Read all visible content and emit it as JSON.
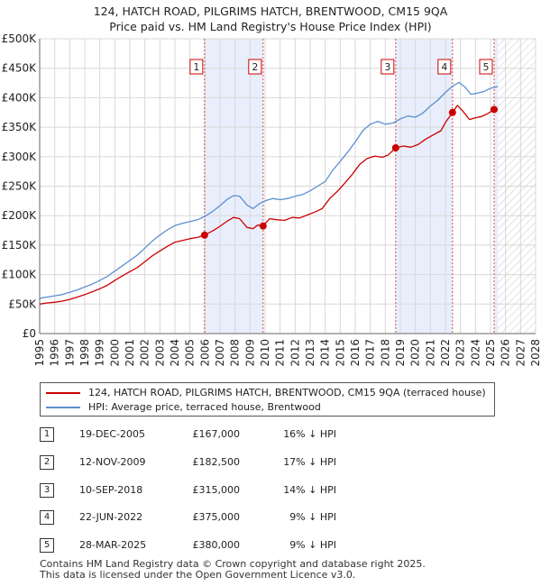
{
  "title": {
    "line1": "124, HATCH ROAD, PILGRIMS HATCH, BRENTWOOD, CM15 9QA",
    "line2": "Price paid vs. HM Land Registry's House Price Index (HPI)"
  },
  "legend": {
    "price_paid_label": "124, HATCH ROAD, PILGRIMS HATCH, BRENTWOOD, CM15 9QA (terraced house)",
    "hpi_label": "HPI: Average price, terraced house, Brentwood"
  },
  "colors": {
    "price_paid": "#cc0000",
    "hpi": "#5b8fcf",
    "shade": "#e8eefb",
    "vline": "#d94a4a",
    "grid": "#d8d8d8"
  },
  "sales": [
    {
      "num": "1",
      "date": "19-DEC-2005",
      "price": "£167,000",
      "hpi_diff": "16% ↓ HPI"
    },
    {
      "num": "2",
      "date": "12-NOV-2009",
      "price": "£182,500",
      "hpi_diff": "17% ↓ HPI"
    },
    {
      "num": "3",
      "date": "10-SEP-2018",
      "price": "£315,000",
      "hpi_diff": "14% ↓ HPI"
    },
    {
      "num": "4",
      "date": "22-JUN-2022",
      "price": "£375,000",
      "hpi_diff": "9% ↓ HPI"
    },
    {
      "num": "5",
      "date": "28-MAR-2025",
      "price": "£380,000",
      "hpi_diff": "9% ↓ HPI"
    }
  ],
  "footer": {
    "line1": "Contains HM Land Registry data © Crown copyright and database right 2025.",
    "line2": "This data is licensed under the Open Government Licence v3.0."
  },
  "chart_data": {
    "type": "line",
    "title": "124, HATCH ROAD, PILGRIMS HATCH, BRENTWOOD, CM15 9QA",
    "subtitle": "Price paid vs. HM Land Registry's House Price Index (HPI)",
    "xlabel": "",
    "ylabel": "",
    "xlim": [
      1995,
      2028
    ],
    "ylim": [
      0,
      500000
    ],
    "x_ticks": [
      1995,
      1996,
      1997,
      1998,
      1999,
      2000,
      2001,
      2002,
      2003,
      2004,
      2005,
      2006,
      2007,
      2008,
      2009,
      2010,
      2011,
      2012,
      2013,
      2014,
      2015,
      2016,
      2017,
      2018,
      2019,
      2020,
      2021,
      2022,
      2023,
      2024,
      2025,
      2026,
      2027,
      2028
    ],
    "y_ticks": [
      {
        "value": 0,
        "label": "£0"
      },
      {
        "value": 50000,
        "label": "£50K"
      },
      {
        "value": 100000,
        "label": "£100K"
      },
      {
        "value": 150000,
        "label": "£150K"
      },
      {
        "value": 200000,
        "label": "£200K"
      },
      {
        "value": 250000,
        "label": "£250K"
      },
      {
        "value": 300000,
        "label": "£300K"
      },
      {
        "value": 350000,
        "label": "£350K"
      },
      {
        "value": 400000,
        "label": "£400K"
      },
      {
        "value": 450000,
        "label": "£450K"
      },
      {
        "value": 500000,
        "label": "£500K"
      }
    ],
    "grid": true,
    "future_hatch_start": 2025.5,
    "shaded_ranges": [
      [
        2005.97,
        2009.87
      ],
      [
        2018.69,
        2022.47
      ],
      [
        2025.24,
        2025.5
      ]
    ],
    "series": [
      {
        "name": "124, HATCH ROAD, PILGRIMS HATCH, BRENTWOOD, CM15 9QA (terraced house)",
        "color": "#cc0000",
        "x": [
          1995.0,
          1995.5,
          1996.0,
          1996.5,
          1997.0,
          1997.5,
          1998.0,
          1998.5,
          1999.0,
          1999.5,
          2000.0,
          2000.5,
          2001.0,
          2001.5,
          2002.0,
          2002.5,
          2003.0,
          2003.5,
          2004.0,
          2004.5,
          2005.0,
          2005.5,
          2005.97,
          2006.5,
          2007.0,
          2007.5,
          2007.9,
          2008.3,
          2008.8,
          2009.2,
          2009.5,
          2009.87,
          2010.3,
          2010.8,
          2011.3,
          2011.8,
          2012.3,
          2012.8,
          2013.3,
          2013.8,
          2014.3,
          2014.8,
          2015.3,
          2015.8,
          2016.3,
          2016.8,
          2017.3,
          2017.8,
          2018.2,
          2018.69,
          2019.2,
          2019.7,
          2020.2,
          2020.7,
          2021.2,
          2021.7,
          2022.0,
          2022.47,
          2022.8,
          2023.2,
          2023.6,
          2024.0,
          2024.4,
          2024.8,
          2025.24
        ],
        "y": [
          50000,
          52000,
          53000,
          55000,
          58000,
          62000,
          66000,
          71000,
          76000,
          82000,
          90000,
          98000,
          105000,
          112000,
          122000,
          132000,
          140000,
          148000,
          155000,
          158000,
          161000,
          163000,
          167000,
          174000,
          182000,
          191000,
          197000,
          195000,
          180000,
          178000,
          184000,
          182500,
          195000,
          193000,
          192000,
          197000,
          196000,
          201000,
          206000,
          212000,
          229000,
          241000,
          255000,
          270000,
          287000,
          297000,
          301000,
          299000,
          303000,
          315000,
          318000,
          316000,
          321000,
          330000,
          337000,
          344000,
          358000,
          375000,
          387000,
          376000,
          363000,
          366000,
          368000,
          373000,
          380000
        ]
      },
      {
        "name": "HPI: Average price, terraced house, Brentwood",
        "color": "#5b8fcf",
        "x": [
          1995.0,
          1995.5,
          1996.0,
          1996.5,
          1997.0,
          1997.5,
          1998.0,
          1998.5,
          1999.0,
          1999.5,
          2000.0,
          2000.5,
          2001.0,
          2001.5,
          2002.0,
          2002.5,
          2003.0,
          2003.5,
          2004.0,
          2004.5,
          2005.0,
          2005.5,
          2006.0,
          2006.5,
          2007.0,
          2007.5,
          2007.9,
          2008.3,
          2008.8,
          2009.2,
          2009.6,
          2010.0,
          2010.5,
          2011.0,
          2011.5,
          2012.0,
          2012.5,
          2013.0,
          2013.5,
          2014.0,
          2014.5,
          2015.0,
          2015.5,
          2016.0,
          2016.5,
          2017.0,
          2017.5,
          2018.0,
          2018.5,
          2019.0,
          2019.5,
          2020.0,
          2020.5,
          2021.0,
          2021.5,
          2022.0,
          2022.5,
          2022.9,
          2023.3,
          2023.7,
          2024.0,
          2024.5,
          2025.0,
          2025.5
        ],
        "y": [
          60000,
          62000,
          64000,
          66000,
          70000,
          74000,
          79000,
          84000,
          90000,
          97000,
          106000,
          115000,
          124000,
          133000,
          145000,
          157000,
          167000,
          176000,
          183000,
          187000,
          190000,
          193000,
          199000,
          207000,
          217000,
          228000,
          234000,
          233000,
          218000,
          212000,
          220000,
          225000,
          229000,
          227000,
          229000,
          233000,
          236000,
          242000,
          250000,
          258000,
          277000,
          292000,
          308000,
          325000,
          344000,
          355000,
          360000,
          355000,
          357000,
          364000,
          369000,
          367000,
          374000,
          386000,
          396000,
          409000,
          420000,
          426000,
          418000,
          406000,
          407000,
          410000,
          416000,
          419000
        ]
      }
    ],
    "sale_markers": [
      {
        "num": "1",
        "x": 2005.97,
        "y": 167000
      },
      {
        "num": "2",
        "x": 2009.87,
        "y": 182500
      },
      {
        "num": "3",
        "x": 2018.69,
        "y": 315000
      },
      {
        "num": "4",
        "x": 2022.47,
        "y": 375000
      },
      {
        "num": "5",
        "x": 2025.24,
        "y": 380000
      }
    ]
  }
}
